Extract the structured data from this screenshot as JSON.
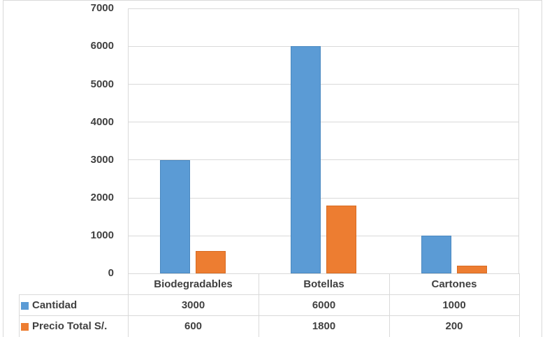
{
  "chart_data": {
    "type": "bar",
    "title": "",
    "xlabel": "",
    "ylabel": "",
    "ylim": [
      0,
      7000
    ],
    "yticks": [
      0,
      1000,
      2000,
      3000,
      4000,
      5000,
      6000,
      7000
    ],
    "grid": true,
    "legend_position": "data-table",
    "categories": [
      "Biodegradables",
      "Botellas",
      "Cartones"
    ],
    "series": [
      {
        "name": "Cantidad",
        "color": "#5b9bd5",
        "values": [
          3000,
          6000,
          1000
        ]
      },
      {
        "name": "Precio Total S/.",
        "color": "#ed7d31",
        "values": [
          600,
          1800,
          200
        ]
      }
    ]
  },
  "yticks_labels": [
    "0",
    "1000",
    "2000",
    "3000",
    "4000",
    "5000",
    "6000",
    "7000"
  ],
  "table": {
    "categories": [
      "Biodegradables",
      "Botellas",
      "Cartones"
    ],
    "rows": [
      {
        "label": "Cantidad",
        "values": [
          "3000",
          "6000",
          "1000"
        ]
      },
      {
        "label": "Precio Total S/.",
        "values": [
          "600",
          "1800",
          "200"
        ]
      }
    ]
  }
}
